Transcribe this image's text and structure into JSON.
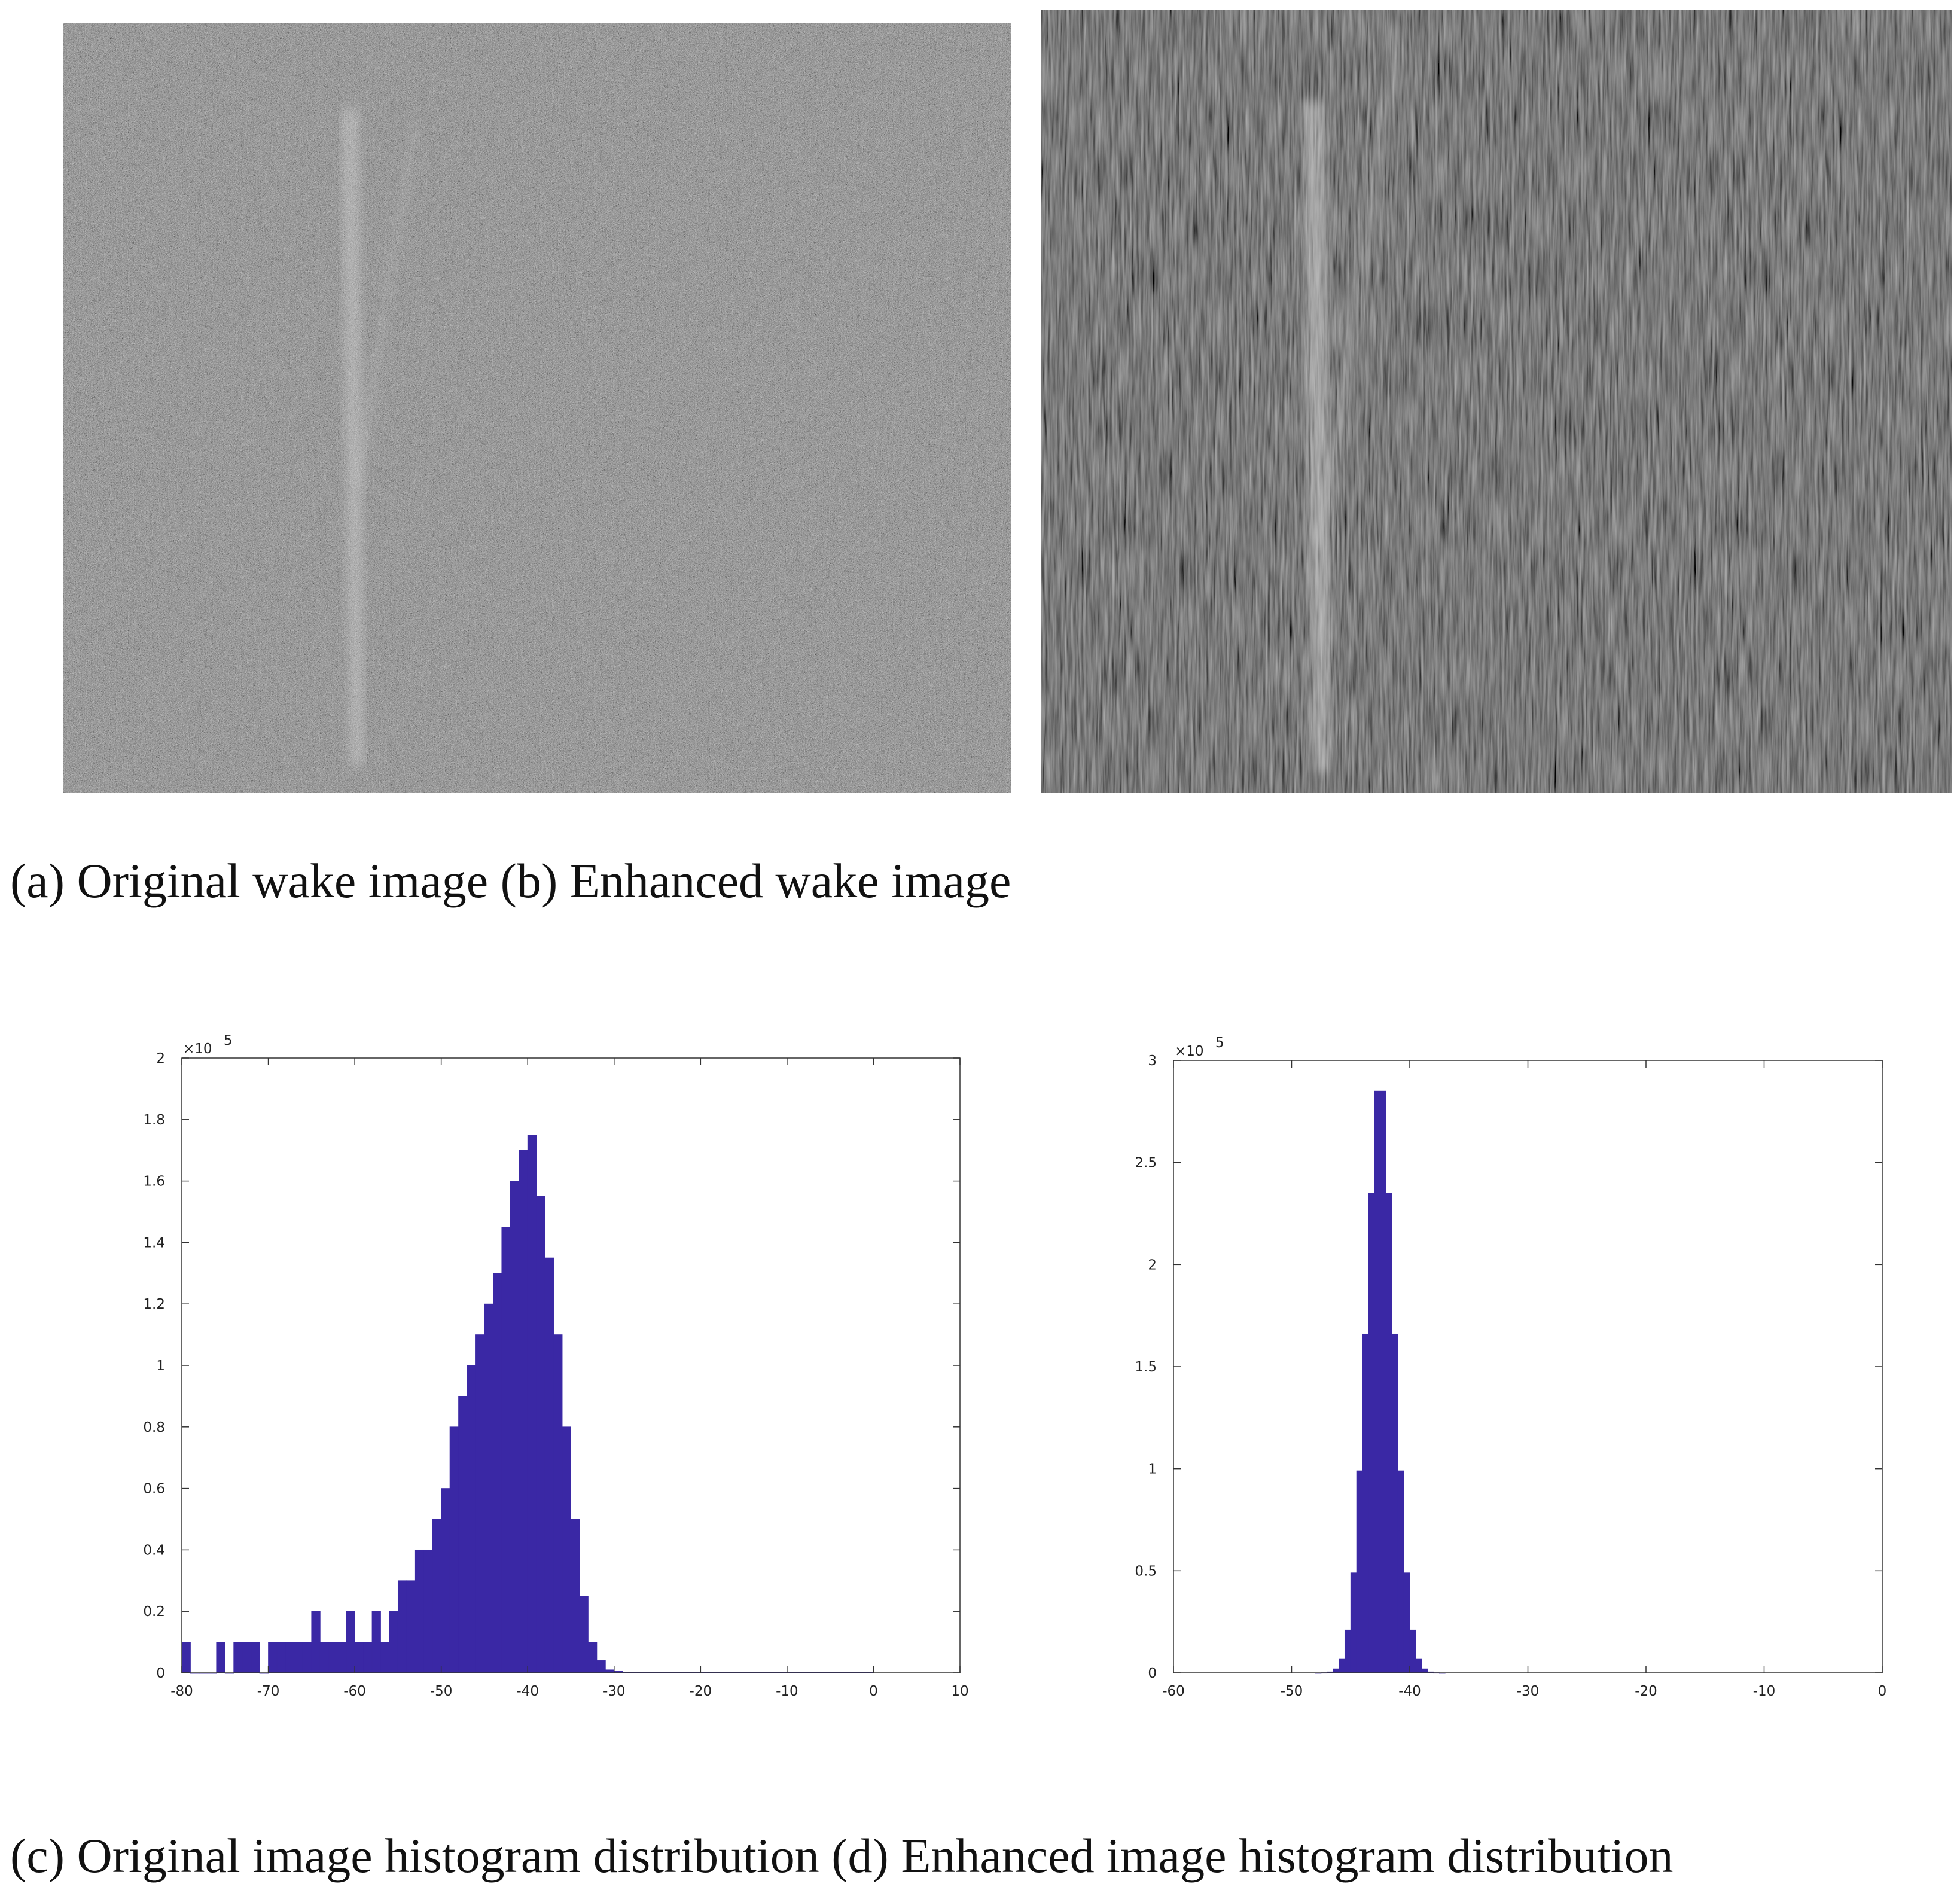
{
  "captions": [
    "(a) Original wake image (b) Enhanced wake image",
    "(c) Original image histogram distribution (d) Enhanced image histogram distribution"
  ],
  "chart_data": [
    {
      "type": "histogram",
      "color": "#3a28a5",
      "y_multiplier": {
        "base": "×10",
        "exponent": "5"
      },
      "bins": [
        -80,
        -79,
        -78,
        -77,
        -76,
        -75,
        -74,
        -73,
        -72,
        -71,
        -70,
        -69,
        -68,
        -67,
        -66,
        -65,
        -64,
        -63,
        -62,
        -61,
        -60,
        -59,
        -58,
        -57,
        -56,
        -55,
        -54,
        -53,
        -52,
        -51,
        -50,
        -49,
        -48,
        -47,
        -46,
        -45,
        -44,
        -43,
        -42,
        -41,
        -40,
        -39,
        -38,
        -37,
        -36,
        -35,
        -34,
        -33,
        -32,
        -31,
        -30,
        -29,
        -28,
        -27,
        -26,
        -25,
        -24,
        -23,
        -22,
        -21,
        -20,
        -19,
        -18,
        -17,
        -16,
        -15,
        -14,
        -13,
        -12,
        -11,
        -10,
        -9,
        -8,
        -7,
        -6,
        -5,
        -4,
        -3,
        -2,
        -1,
        0
      ],
      "values": [
        0.1,
        0,
        0,
        0,
        0.1,
        0,
        0.1,
        0.1,
        0.1,
        0,
        0.1,
        0.1,
        0.1,
        0.1,
        0.1,
        0.2,
        0.1,
        0.1,
        0.1,
        0.2,
        0.1,
        0.1,
        0.2,
        0.1,
        0.2,
        0.3,
        0.3,
        0.4,
        0.4,
        0.5,
        0.6,
        0.8,
        0.9,
        1.0,
        1.1,
        1.2,
        1.3,
        1.45,
        1.6,
        1.7,
        1.75,
        1.55,
        1.35,
        1.1,
        0.8,
        0.5,
        0.25,
        0.1,
        0.04,
        0.01,
        0.005,
        0.003,
        0.003,
        0.003,
        0.003,
        0.003,
        0.003,
        0.003,
        0.003,
        0.003,
        0.003,
        0.003,
        0.003,
        0.003,
        0.003,
        0.003,
        0.003,
        0.003,
        0.003,
        0.003,
        0.003,
        0.003,
        0.003,
        0.003,
        0.003,
        0.003,
        0.003,
        0.003,
        0.003,
        0.003
      ],
      "xlim": [
        -80,
        10
      ],
      "xticks": [
        -80,
        -70,
        -60,
        -50,
        -40,
        -30,
        -20,
        -10,
        0,
        10
      ],
      "ylim": [
        0,
        2
      ],
      "yticks": [
        0,
        0.2,
        0.4,
        0.6,
        0.8,
        1,
        1.2,
        1.4,
        1.6,
        1.8,
        2
      ]
    },
    {
      "type": "histogram",
      "color": "#3a28a5",
      "y_multiplier": {
        "base": "×10",
        "exponent": "5"
      },
      "bins": [
        -48,
        -47.5,
        -47,
        -46.5,
        -46,
        -45.5,
        -45,
        -44.5,
        -44,
        -43.5,
        -43,
        -42.5,
        -42,
        -41.5,
        -41,
        -40.5,
        -40,
        -39.5,
        -39,
        -38.5,
        -38,
        -37.5,
        -37
      ],
      "values": [
        0.0002,
        0.001,
        0.005,
        0.02,
        0.07,
        0.21,
        0.49,
        0.99,
        1.66,
        2.35,
        2.85,
        2.85,
        2.35,
        1.66,
        0.99,
        0.49,
        0.21,
        0.07,
        0.02,
        0.005,
        0.001,
        0.0002
      ],
      "xlim": [
        -60,
        0
      ],
      "xticks": [
        -60,
        -50,
        -40,
        -30,
        -20,
        -10,
        0
      ],
      "ylim": [
        0,
        3
      ],
      "yticks": [
        0,
        0.5,
        1,
        1.5,
        2,
        2.5,
        3
      ]
    }
  ]
}
